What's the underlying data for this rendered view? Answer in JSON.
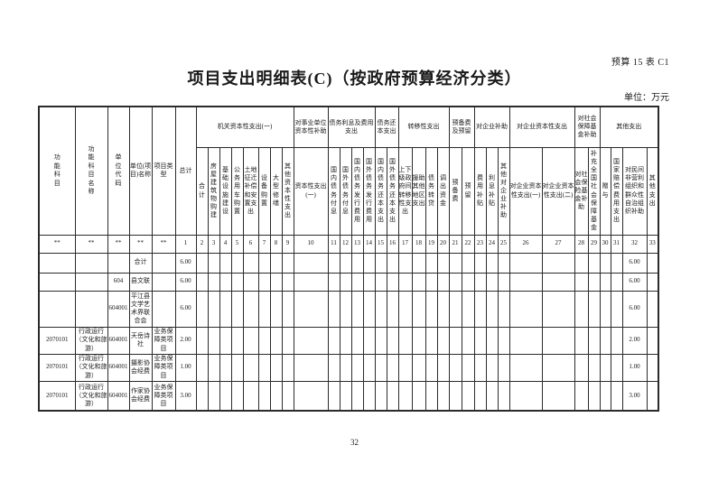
{
  "header": {
    "form_code": "预算 15 表 C1",
    "title": "项目支出明细表(C)（按政府预算经济分类）",
    "unit_label": "单位：万元"
  },
  "footer": {
    "page_number": "32"
  },
  "chart_data": {
    "type": "table",
    "title": "项目支出明细表(C)（按政府预算经济分类）",
    "left_headers": [
      "功能科目",
      "功能科目名称",
      "单位代码",
      "单位(项目)名称",
      "项目类型",
      "总计"
    ],
    "groups": [
      {
        "label": "机关资本性支出(一)",
        "cols": [
          "合计",
          "房屋建筑物购建",
          "基础设施建设",
          "公务用车购置",
          "土地征迁补偿和安置支出",
          "设备购置",
          "大型修缮",
          "其他资本性支出"
        ]
      },
      {
        "label": "对事业单位资本性补助",
        "cols": [
          "资本性支出(一)"
        ]
      },
      {
        "label": "债务利息及费用支出",
        "cols": [
          "国内债务付息",
          "国外债务付息",
          "国内债务发行费用",
          "国外债务发行费用"
        ]
      },
      {
        "label": "债务还本支出",
        "cols": [
          "国内债务还本支出",
          "国外债务还本支出"
        ]
      },
      {
        "label": "转移性支出",
        "cols": [
          "上下级政府间转移性支出",
          "援助其他地区支出",
          "债务转贷",
          "调出资金"
        ]
      },
      {
        "label": "预备费及预留",
        "cols": [
          "预备费",
          "预留"
        ]
      },
      {
        "label": "对企业补助",
        "cols": [
          "费用补贴",
          "利息补贴",
          "其他对企业补助"
        ]
      },
      {
        "label": "对企业资本性支出",
        "cols": [
          "对企业资本性支出(一)",
          "对企业资本性支出(二)"
        ]
      },
      {
        "label": "对社会保障基金补助",
        "cols": [
          "对社会保险基金补助",
          "补充全国社会保障基金"
        ]
      },
      {
        "label": "其他支出",
        "cols": [
          "赠与",
          "国家赔偿费用支出",
          "对民间非营利组织和群众性自治组织补助",
          "其他支出"
        ]
      }
    ],
    "col_codes": [
      "**",
      "**",
      "**",
      "**",
      "**",
      "1",
      "2",
      "3",
      "4",
      "5",
      "6",
      "7",
      "8",
      "9",
      "10",
      "11",
      "12",
      "13",
      "14",
      "15",
      "16",
      "17",
      "18",
      "19",
      "20",
      "21",
      "22",
      "23",
      "24",
      "25",
      "26",
      "27",
      "28",
      "29",
      "30",
      "31",
      "32",
      "33"
    ],
    "rows": [
      {
        "func_code": "",
        "func_name": "",
        "unit_code": "",
        "unit_name": "合计",
        "proj_type": "",
        "total": "6.00",
        "values": {
          "32": "6.00"
        }
      },
      {
        "func_code": "",
        "func_name": "",
        "unit_code": "604",
        "unit_name": "县文联",
        "proj_type": "",
        "total": "6.00",
        "values": {
          "32": "6.00"
        }
      },
      {
        "func_code": "",
        "func_name": "",
        "unit_code": "604001",
        "unit_name": "平江县文学艺术界联合会",
        "proj_type": "",
        "total": "6.00",
        "values": {
          "32": "6.00"
        }
      },
      {
        "func_code": "2070101",
        "func_name": "行政运行（文化和旅游）",
        "unit_code": "604001",
        "unit_name": "天岳诗社",
        "proj_type": "业务保障类项目",
        "total": "2.00",
        "values": {
          "32": "2.00"
        }
      },
      {
        "func_code": "2070101",
        "func_name": "行政运行（文化和旅游）",
        "unit_code": "604001",
        "unit_name": "摄影协会经费",
        "proj_type": "业务保障类项目",
        "total": "1.00",
        "values": {
          "32": "1.00"
        }
      },
      {
        "func_code": "2070101",
        "func_name": "行政运行（文化和旅游）",
        "unit_code": "604001",
        "unit_name": "作家协会经费",
        "proj_type": "业务保障类项目",
        "total": "3.00",
        "values": {
          "32": "3.00"
        }
      }
    ]
  }
}
